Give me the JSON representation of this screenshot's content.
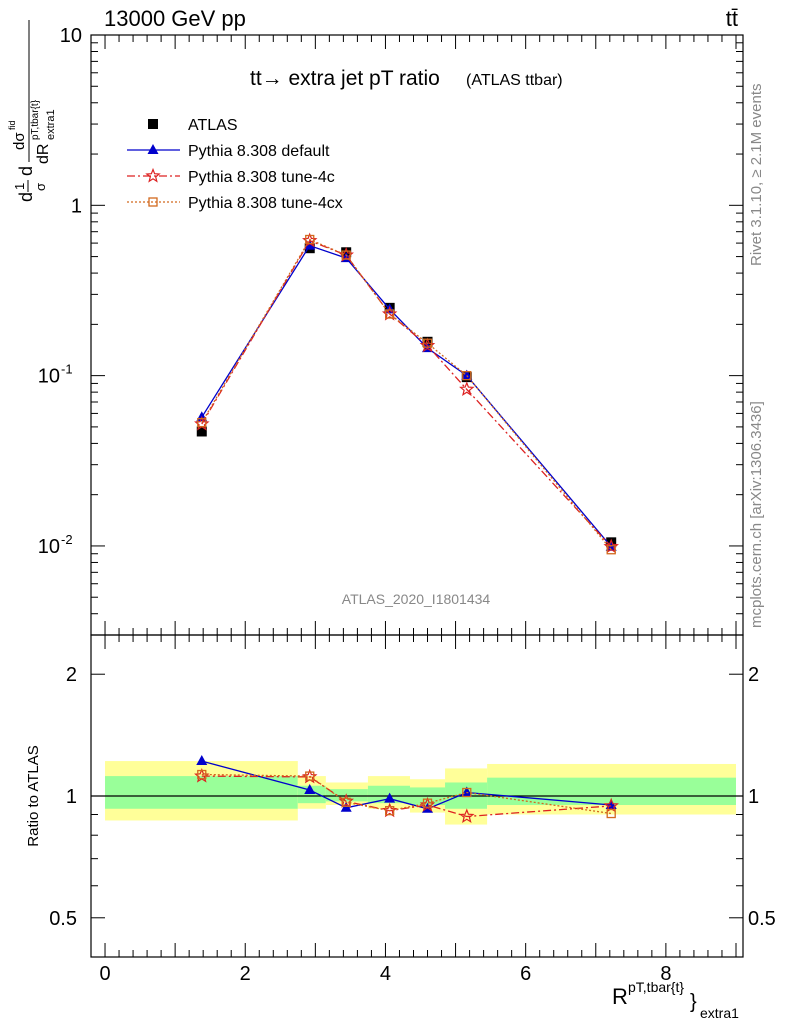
{
  "header": {
    "energy_label": "13000 GeV pp",
    "process_label": "tt̄"
  },
  "side_labels": {
    "rivet": "Rivet 3.1.10, ≥ 2.1M events",
    "mcplots": "mcplots.cern.ch [arXiv:1306.3436]"
  },
  "chart_data": [
    {
      "type": "scatter",
      "panel": "main",
      "title": "tt→ extra jet pT ratio",
      "title_suffix": "(ATLAS ttbar)",
      "watermark": "ATLAS_2020_I1801434",
      "ylabel": "1/σ dσ^fid / dR_extra1^{pT,tbar{t}}",
      "y_scale": "log",
      "ylim": [
        0.003,
        10
      ],
      "xlim": [
        -0.2,
        9.1
      ],
      "y_tick_labels": [
        "10",
        "1",
        "10^-1",
        "10^-2"
      ],
      "legend_position": "top-left",
      "series": [
        {
          "name": "ATLAS",
          "color": "#000000",
          "marker": "filled-square",
          "x": [
            1.38,
            2.92,
            3.44,
            4.06,
            4.6,
            5.16,
            7.22
          ],
          "y": [
            0.047,
            0.56,
            0.53,
            0.25,
            0.158,
            0.098,
            0.0105
          ]
        },
        {
          "name": "Pythia 8.308 default",
          "color": "#0000cc",
          "marker": "filled-triangle",
          "line": "solid",
          "x": [
            1.38,
            2.92,
            3.44,
            4.06,
            4.6,
            5.16,
            7.22
          ],
          "y": [
            0.057,
            0.58,
            0.49,
            0.245,
            0.145,
            0.1,
            0.0099
          ]
        },
        {
          "name": "Pythia 8.308 tune-4c",
          "color": "#dd2222",
          "marker": "open-star",
          "line": "dash-dot",
          "x": [
            1.38,
            2.92,
            3.44,
            4.06,
            4.6,
            5.16,
            7.22
          ],
          "y": [
            0.052,
            0.62,
            0.51,
            0.23,
            0.15,
            0.083,
            0.0099
          ]
        },
        {
          "name": "Pythia 8.308 tune-4cx",
          "color": "#d2691e",
          "marker": "open-square",
          "line": "dotted",
          "x": [
            1.38,
            2.92,
            3.44,
            4.06,
            4.6,
            5.16,
            7.22
          ],
          "y": [
            0.053,
            0.63,
            0.51,
            0.23,
            0.155,
            0.1,
            0.0095
          ]
        }
      ]
    },
    {
      "type": "scatter",
      "panel": "ratio",
      "ylabel": "Ratio to ATLAS",
      "xlabel": "R^{pT,tbar{t}}_extra1",
      "y_scale": "log",
      "ylim": [
        0.4,
        2.5
      ],
      "xlim": [
        -0.2,
        9.1
      ],
      "x_tick_labels": [
        "0",
        "2",
        "4",
        "6",
        "8"
      ],
      "y_tick_labels": [
        "2",
        "1",
        "0.5"
      ],
      "bands": [
        {
          "x0": 0.0,
          "x1": 2.75,
          "inner": [
            0.93,
            1.12
          ],
          "outer": [
            0.87,
            1.22
          ]
        },
        {
          "x0": 2.75,
          "x1": 3.15,
          "inner": [
            0.96,
            1.06
          ],
          "outer": [
            0.93,
            1.12
          ]
        },
        {
          "x0": 3.15,
          "x1": 3.75,
          "inner": [
            0.97,
            1.04
          ],
          "outer": [
            0.95,
            1.08
          ]
        },
        {
          "x0": 3.75,
          "x1": 4.35,
          "inner": [
            0.96,
            1.06
          ],
          "outer": [
            0.93,
            1.12
          ]
        },
        {
          "x0": 4.35,
          "x1": 4.85,
          "inner": [
            0.95,
            1.05
          ],
          "outer": [
            0.91,
            1.1
          ]
        },
        {
          "x0": 4.85,
          "x1": 5.45,
          "inner": [
            0.93,
            1.08
          ],
          "outer": [
            0.85,
            1.17
          ]
        },
        {
          "x0": 5.45,
          "x1": 9.0,
          "inner": [
            0.95,
            1.11
          ],
          "outer": [
            0.9,
            1.2
          ]
        }
      ],
      "series": [
        {
          "name": "Pythia 8.308 default",
          "color": "#0000cc",
          "marker": "filled-triangle",
          "line": "solid",
          "x": [
            1.38,
            2.92,
            3.44,
            4.06,
            4.6,
            5.16,
            7.22
          ],
          "y": [
            1.22,
            1.035,
            0.935,
            0.985,
            0.93,
            1.02,
            0.95
          ]
        },
        {
          "name": "Pythia 8.308 tune-4c",
          "color": "#dd2222",
          "marker": "open-star",
          "line": "dash-dot",
          "x": [
            1.38,
            2.92,
            3.44,
            4.06,
            4.6,
            5.16,
            7.22
          ],
          "y": [
            1.12,
            1.115,
            0.97,
            0.92,
            0.95,
            0.89,
            0.945
          ]
        },
        {
          "name": "Pythia 8.308 tune-4cx",
          "color": "#d2691e",
          "marker": "open-square",
          "line": "dotted",
          "x": [
            1.38,
            2.92,
            3.44,
            4.06,
            4.6,
            5.16,
            7.22
          ],
          "y": [
            1.13,
            1.12,
            0.965,
            0.92,
            0.96,
            1.02,
            0.905
          ]
        }
      ]
    }
  ]
}
